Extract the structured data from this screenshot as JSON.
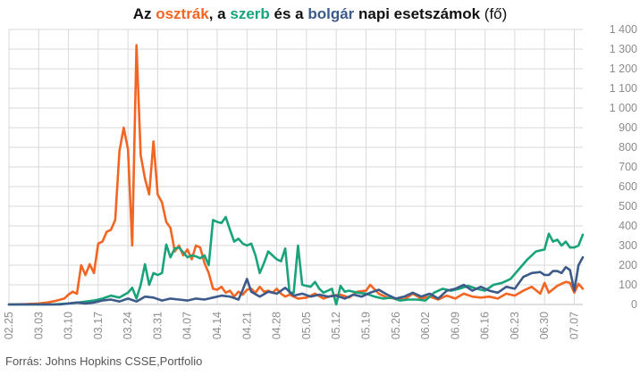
{
  "title": {
    "part1": "Az ",
    "austria": "osztrák",
    "part2": ", a ",
    "serbia": "szerb",
    "part3": " és a ",
    "bulgaria": "bolgár",
    "part4": " napi esetszámok ",
    "unit": "(fő)"
  },
  "source": "Forrás: Johns Hopkins CSSE,Portfolio",
  "colors": {
    "austria": "#f26522",
    "serbia": "#1aa37a",
    "bulgaria": "#3c5a8a",
    "grid": "#d9d9d9",
    "tick": "#8c8c8c"
  },
  "chart_data": {
    "type": "line",
    "title": "Az osztrák, a szerb és a bolgár napi esetszámok (fő)",
    "xlabel": "",
    "ylabel": "",
    "ylim": [
      0,
      1400
    ],
    "y_ticks": [
      "0",
      "100",
      "200",
      "300",
      "400",
      "500",
      "600",
      "700",
      "800",
      "900",
      "1 000",
      "1 100",
      "1 200",
      "1 300",
      "1 400"
    ],
    "x_ticks": [
      "02.25",
      "03.03",
      "03.10",
      "03.17",
      "03.24",
      "03.31",
      "04.07",
      "04.14",
      "04.21",
      "04.28",
      "05.05",
      "05.12",
      "05.19",
      "05.26",
      "06.02",
      "06.09",
      "06.16",
      "06.23",
      "06.30",
      "07.07"
    ],
    "x_start": "02.25",
    "x_end": "07.09",
    "grid": true,
    "y_axis_position": "right",
    "series": [
      {
        "name": "osztrák",
        "color": "#f26522",
        "points": [
          [
            "02.25",
            0
          ],
          [
            "02.29",
            2
          ],
          [
            "03.03",
            5
          ],
          [
            "03.05",
            10
          ],
          [
            "03.07",
            18
          ],
          [
            "03.09",
            30
          ],
          [
            "03.10",
            50
          ],
          [
            "03.11",
            65
          ],
          [
            "03.12",
            55
          ],
          [
            "03.13",
            200
          ],
          [
            "03.14",
            150
          ],
          [
            "03.15",
            205
          ],
          [
            "03.16",
            160
          ],
          [
            "03.17",
            310
          ],
          [
            "03.18",
            320
          ],
          [
            "03.19",
            370
          ],
          [
            "03.20",
            380
          ],
          [
            "03.21",
            430
          ],
          [
            "03.22",
            780
          ],
          [
            "03.23",
            900
          ],
          [
            "03.24",
            790
          ],
          [
            "03.25",
            300
          ],
          [
            "03.26",
            1320
          ],
          [
            "03.27",
            760
          ],
          [
            "03.28",
            640
          ],
          [
            "03.29",
            560
          ],
          [
            "03.30",
            830
          ],
          [
            "03.31",
            560
          ],
          [
            "04.01",
            520
          ],
          [
            "04.02",
            420
          ],
          [
            "04.03",
            390
          ],
          [
            "04.04",
            270
          ],
          [
            "04.05",
            300
          ],
          [
            "04.06",
            250
          ],
          [
            "04.07",
            280
          ],
          [
            "04.08",
            230
          ],
          [
            "04.09",
            300
          ],
          [
            "04.10",
            290
          ],
          [
            "04.11",
            210
          ],
          [
            "04.12",
            160
          ],
          [
            "04.13",
            80
          ],
          [
            "04.14",
            75
          ],
          [
            "04.15",
            90
          ],
          [
            "04.16",
            60
          ],
          [
            "04.17",
            70
          ],
          [
            "04.18",
            40
          ],
          [
            "04.19",
            65
          ],
          [
            "04.20",
            50
          ],
          [
            "04.21",
            75
          ],
          [
            "04.22",
            80
          ],
          [
            "04.23",
            60
          ],
          [
            "04.24",
            90
          ],
          [
            "04.25",
            65
          ],
          [
            "04.26",
            70
          ],
          [
            "04.27",
            60
          ],
          [
            "04.28",
            80
          ],
          [
            "04.29",
            55
          ],
          [
            "04.30",
            40
          ],
          [
            "05.01",
            50
          ],
          [
            "05.03",
            30
          ],
          [
            "05.05",
            35
          ],
          [
            "05.07",
            55
          ],
          [
            "05.09",
            30
          ],
          [
            "05.11",
            45
          ],
          [
            "05.13",
            50
          ],
          [
            "05.15",
            35
          ],
          [
            "05.17",
            65
          ],
          [
            "05.19",
            70
          ],
          [
            "05.20",
            100
          ],
          [
            "05.22",
            55
          ],
          [
            "05.24",
            35
          ],
          [
            "05.26",
            30
          ],
          [
            "05.28",
            25
          ],
          [
            "05.30",
            55
          ],
          [
            "06.01",
            30
          ],
          [
            "06.03",
            40
          ],
          [
            "06.05",
            25
          ],
          [
            "06.07",
            45
          ],
          [
            "06.09",
            30
          ],
          [
            "06.11",
            55
          ],
          [
            "06.13",
            40
          ],
          [
            "06.15",
            35
          ],
          [
            "06.17",
            40
          ],
          [
            "06.19",
            30
          ],
          [
            "06.21",
            55
          ],
          [
            "06.23",
            45
          ],
          [
            "06.25",
            70
          ],
          [
            "06.27",
            90
          ],
          [
            "06.29",
            55
          ],
          [
            "06.30",
            110
          ],
          [
            "07.01",
            60
          ],
          [
            "07.03",
            95
          ],
          [
            "07.05",
            115
          ],
          [
            "07.06",
            110
          ],
          [
            "07.07",
            60
          ],
          [
            "07.08",
            105
          ],
          [
            "07.09",
            80
          ]
        ]
      },
      {
        "name": "szerb",
        "color": "#1aa37a",
        "points": [
          [
            "02.25",
            0
          ],
          [
            "03.06",
            0
          ],
          [
            "03.10",
            5
          ],
          [
            "03.13",
            12
          ],
          [
            "03.16",
            20
          ],
          [
            "03.18",
            30
          ],
          [
            "03.20",
            45
          ],
          [
            "03.22",
            35
          ],
          [
            "03.24",
            60
          ],
          [
            "03.25",
            85
          ],
          [
            "03.26",
            30
          ],
          [
            "03.27",
            100
          ],
          [
            "03.28",
            205
          ],
          [
            "03.29",
            100
          ],
          [
            "03.30",
            160
          ],
          [
            "03.31",
            150
          ],
          [
            "04.01",
            160
          ],
          [
            "04.02",
            305
          ],
          [
            "04.03",
            240
          ],
          [
            "04.04",
            285
          ],
          [
            "04.05",
            290
          ],
          [
            "04.06",
            265
          ],
          [
            "04.07",
            240
          ],
          [
            "04.08",
            250
          ],
          [
            "04.09",
            245
          ],
          [
            "04.10",
            235
          ],
          [
            "04.11",
            250
          ],
          [
            "04.12",
            200
          ],
          [
            "04.13",
            430
          ],
          [
            "04.14",
            420
          ],
          [
            "04.15",
            415
          ],
          [
            "04.16",
            445
          ],
          [
            "04.17",
            380
          ],
          [
            "04.18",
            320
          ],
          [
            "04.19",
            335
          ],
          [
            "04.20",
            310
          ],
          [
            "04.21",
            300
          ],
          [
            "04.22",
            310
          ],
          [
            "04.23",
            250
          ],
          [
            "04.24",
            160
          ],
          [
            "04.25",
            210
          ],
          [
            "04.26",
            270
          ],
          [
            "04.27",
            250
          ],
          [
            "04.28",
            230
          ],
          [
            "04.29",
            220
          ],
          [
            "04.30",
            285
          ],
          [
            "05.01",
            60
          ],
          [
            "05.02",
            60
          ],
          [
            "05.03",
            300
          ],
          [
            "05.04",
            100
          ],
          [
            "05.05",
            95
          ],
          [
            "05.06",
            90
          ],
          [
            "05.07",
            115
          ],
          [
            "05.08",
            80
          ],
          [
            "05.09",
            60
          ],
          [
            "05.10",
            70
          ],
          [
            "05.11",
            80
          ],
          [
            "05.12",
            0
          ],
          [
            "05.13",
            95
          ],
          [
            "05.14",
            65
          ],
          [
            "05.15",
            70
          ],
          [
            "05.17",
            60
          ],
          [
            "05.19",
            55
          ],
          [
            "05.21",
            40
          ],
          [
            "05.23",
            30
          ],
          [
            "05.25",
            35
          ],
          [
            "05.27",
            20
          ],
          [
            "05.29",
            25
          ],
          [
            "05.31",
            25
          ],
          [
            "06.02",
            20
          ],
          [
            "06.04",
            60
          ],
          [
            "06.06",
            80
          ],
          [
            "06.08",
            70
          ],
          [
            "06.10",
            80
          ],
          [
            "06.12",
            95
          ],
          [
            "06.14",
            80
          ],
          [
            "06.16",
            70
          ],
          [
            "06.18",
            100
          ],
          [
            "06.20",
            110
          ],
          [
            "06.22",
            130
          ],
          [
            "06.24",
            180
          ],
          [
            "06.26",
            230
          ],
          [
            "06.28",
            270
          ],
          [
            "06.30",
            280
          ],
          [
            "07.01",
            360
          ],
          [
            "07.02",
            320
          ],
          [
            "07.03",
            330
          ],
          [
            "07.04",
            300
          ],
          [
            "07.05",
            320
          ],
          [
            "07.06",
            290
          ],
          [
            "07.07",
            290
          ],
          [
            "07.08",
            300
          ],
          [
            "07.09",
            355
          ]
        ]
      },
      {
        "name": "bolgár",
        "color": "#3c5a8a",
        "points": [
          [
            "02.25",
            0
          ],
          [
            "03.08",
            0
          ],
          [
            "03.10",
            5
          ],
          [
            "03.12",
            10
          ],
          [
            "03.14",
            5
          ],
          [
            "03.16",
            10
          ],
          [
            "03.18",
            20
          ],
          [
            "03.20",
            25
          ],
          [
            "03.22",
            15
          ],
          [
            "03.24",
            30
          ],
          [
            "03.26",
            15
          ],
          [
            "03.28",
            40
          ],
          [
            "03.30",
            35
          ],
          [
            "04.01",
            20
          ],
          [
            "04.03",
            30
          ],
          [
            "04.05",
            25
          ],
          [
            "04.07",
            20
          ],
          [
            "04.09",
            30
          ],
          [
            "04.11",
            25
          ],
          [
            "04.13",
            35
          ],
          [
            "04.15",
            45
          ],
          [
            "04.17",
            40
          ],
          [
            "04.19",
            25
          ],
          [
            "04.20",
            75
          ],
          [
            "04.21",
            130
          ],
          [
            "04.22",
            65
          ],
          [
            "04.24",
            40
          ],
          [
            "04.26",
            65
          ],
          [
            "04.28",
            55
          ],
          [
            "04.30",
            85
          ],
          [
            "05.02",
            45
          ],
          [
            "05.04",
            55
          ],
          [
            "05.06",
            40
          ],
          [
            "05.08",
            50
          ],
          [
            "05.10",
            40
          ],
          [
            "05.12",
            45
          ],
          [
            "05.14",
            30
          ],
          [
            "05.16",
            50
          ],
          [
            "05.18",
            40
          ],
          [
            "05.20",
            60
          ],
          [
            "05.22",
            75
          ],
          [
            "05.24",
            50
          ],
          [
            "05.26",
            30
          ],
          [
            "05.28",
            40
          ],
          [
            "05.30",
            60
          ],
          [
            "06.01",
            40
          ],
          [
            "06.03",
            55
          ],
          [
            "06.05",
            30
          ],
          [
            "06.07",
            70
          ],
          [
            "06.09",
            80
          ],
          [
            "06.11",
            100
          ],
          [
            "06.13",
            70
          ],
          [
            "06.15",
            90
          ],
          [
            "06.17",
            70
          ],
          [
            "06.19",
            60
          ],
          [
            "06.21",
            90
          ],
          [
            "06.23",
            80
          ],
          [
            "06.25",
            140
          ],
          [
            "06.27",
            160
          ],
          [
            "06.29",
            165
          ],
          [
            "06.30",
            150
          ],
          [
            "07.01",
            150
          ],
          [
            "07.02",
            170
          ],
          [
            "07.03",
            170
          ],
          [
            "07.04",
            160
          ],
          [
            "07.05",
            190
          ],
          [
            "07.06",
            175
          ],
          [
            "07.07",
            70
          ],
          [
            "07.08",
            200
          ],
          [
            "07.09",
            240
          ]
        ]
      }
    ]
  }
}
